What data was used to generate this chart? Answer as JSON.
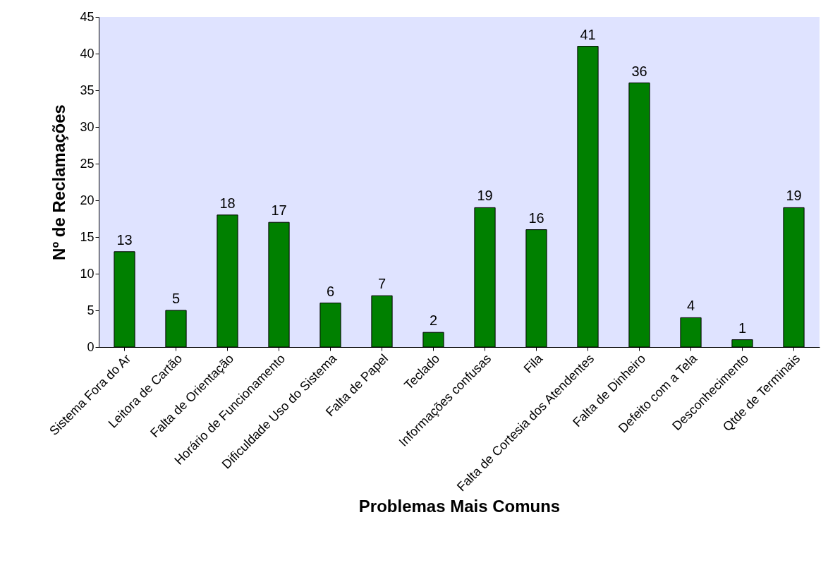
{
  "chart_data": {
    "type": "bar",
    "xlabel": "Problemas Mais Comuns",
    "ylabel": "Nº de Reclamações",
    "categories": [
      "Sistema Fora do Ar",
      "Leitora de Cartão",
      "Falta de Orientação",
      "Horário de Funcionamento",
      "Dificuldade Uso do Sistema",
      "Falta de Papel",
      "Teclado",
      "Informações confusas",
      "Fila",
      "Falta de Cortesia dos Atendentes",
      "Falta de Dinheiro",
      "Defeito com a Tela",
      "Desconhecimento",
      "Qtde de Terminais"
    ],
    "values": [
      13,
      5,
      18,
      17,
      6,
      7,
      2,
      19,
      16,
      41,
      36,
      4,
      1,
      19
    ],
    "color": "#008000",
    "ylim": [
      0,
      45
    ],
    "yticks": [
      0,
      5,
      10,
      15,
      20,
      25,
      30,
      35,
      40,
      45
    ],
    "grid": false,
    "data_labels": true
  }
}
